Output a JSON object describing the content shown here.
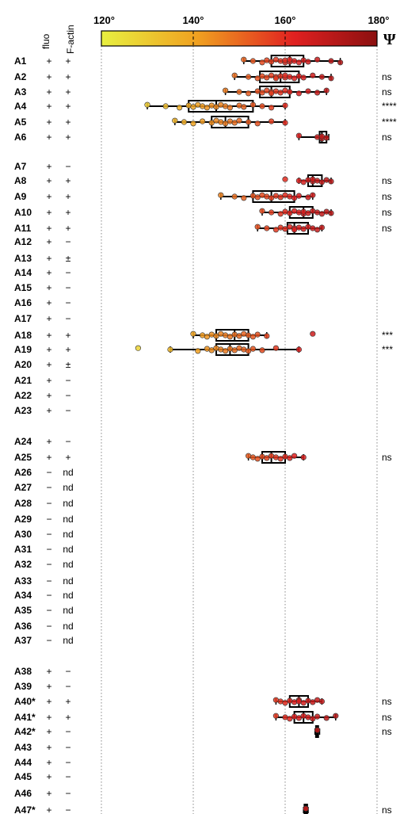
{
  "chart_data": {
    "type": "box",
    "title": "",
    "xlabel": "",
    "ylabel": "",
    "x_ticks": [
      "120°",
      "140°",
      "160°",
      "180°"
    ],
    "x_tick_values": [
      120,
      140,
      160,
      180
    ],
    "xlim": [
      120,
      180
    ],
    "colorbar": {
      "symbol": "Ψ",
      "range": [
        120,
        180
      ],
      "colors": [
        "#e8f040",
        "#f0a020",
        "#e02020",
        "#8b1010"
      ]
    },
    "grid": "dotted vertical",
    "column_headers": [
      "fluo",
      "F-actin"
    ],
    "rows": [
      {
        "name": "A1",
        "fluo": "+",
        "factin": "+",
        "sig": "",
        "stats": {
          "min": 151,
          "q1": 157,
          "median": 161,
          "q3": 164,
          "max": 172
        },
        "points": [
          151,
          153,
          155,
          156,
          157,
          158,
          159,
          160,
          160,
          161,
          161,
          162,
          163,
          164,
          165,
          167,
          170,
          172
        ]
      },
      {
        "name": "A2",
        "fluo": "+",
        "factin": "+",
        "sig": "ns",
        "stats": {
          "min": 149,
          "q1": 154.5,
          "median": 159,
          "q3": 163,
          "max": 170
        },
        "points": [
          149,
          152,
          154,
          155,
          156,
          157,
          158,
          158,
          159,
          160,
          160,
          161,
          162,
          163,
          164,
          166,
          168,
          170
        ]
      },
      {
        "name": "A3",
        "fluo": "+",
        "factin": "+",
        "sig": "ns",
        "stats": {
          "min": 147,
          "q1": 154.5,
          "median": 157,
          "q3": 161,
          "max": 169
        },
        "points": [
          147,
          150,
          152,
          154,
          155,
          156,
          157,
          157,
          158,
          159,
          160,
          161,
          163,
          165,
          167,
          169
        ]
      },
      {
        "name": "A4",
        "fluo": "+",
        "factin": "+",
        "sig": "****",
        "stats": {
          "min": 130,
          "q1": 139,
          "median": 145,
          "q3": 153,
          "max": 160
        },
        "points": [
          130,
          134,
          137,
          139,
          140,
          141,
          142,
          143,
          144,
          145,
          146,
          147,
          148,
          150,
          151,
          153,
          155,
          157,
          160
        ]
      },
      {
        "name": "A5",
        "fluo": "+",
        "factin": "+",
        "sig": "****",
        "stats": {
          "min": 136,
          "q1": 144,
          "median": 147,
          "q3": 152,
          "max": 160
        },
        "points": [
          136,
          138,
          140,
          142,
          144,
          145,
          146,
          147,
          148,
          149,
          150,
          152,
          154,
          157,
          160
        ]
      },
      {
        "name": "A6",
        "fluo": "+",
        "factin": "+",
        "sig": "ns",
        "stats": {
          "min": 163,
          "q1": 167.5,
          "median": 168,
          "q3": 169,
          "max": 169.5
        },
        "points": [
          163,
          167,
          168,
          168,
          169
        ]
      },
      {
        "name": "A7",
        "fluo": "+",
        "factin": "−",
        "sig": ""
      },
      {
        "name": "A8",
        "fluo": "+",
        "factin": "+",
        "sig": "ns",
        "stats": {
          "min": 163,
          "q1": 165,
          "median": 166,
          "q3": 168,
          "max": 170
        },
        "points": [
          160,
          163,
          164,
          165,
          166,
          166,
          167,
          168,
          169,
          170
        ]
      },
      {
        "name": "A9",
        "fluo": "+",
        "factin": "+",
        "sig": "ns",
        "stats": {
          "min": 146,
          "q1": 153,
          "median": 157,
          "q3": 162,
          "max": 166
        },
        "points": [
          146,
          149,
          151,
          153,
          154,
          155,
          156,
          157,
          158,
          159,
          160,
          161,
          162,
          163,
          165,
          166
        ]
      },
      {
        "name": "A10",
        "fluo": "+",
        "factin": "+",
        "sig": "ns",
        "stats": {
          "min": 155,
          "q1": 161,
          "median": 164,
          "q3": 166,
          "max": 170
        },
        "points": [
          155,
          157,
          159,
          160,
          161,
          162,
          163,
          164,
          164,
          165,
          166,
          167,
          168,
          169,
          170
        ]
      },
      {
        "name": "A11",
        "fluo": "+",
        "factin": "+",
        "sig": "ns",
        "stats": {
          "min": 154,
          "q1": 160.5,
          "median": 162,
          "q3": 165,
          "max": 168
        },
        "points": [
          154,
          156,
          158,
          159,
          160,
          161,
          162,
          162,
          163,
          164,
          165,
          166,
          167,
          168
        ]
      },
      {
        "name": "A12",
        "fluo": "+",
        "factin": "−",
        "sig": ""
      },
      {
        "name": "A13",
        "fluo": "+",
        "factin": "±",
        "sig": ""
      },
      {
        "name": "A14",
        "fluo": "+",
        "factin": "−",
        "sig": ""
      },
      {
        "name": "A15",
        "fluo": "+",
        "factin": "−",
        "sig": ""
      },
      {
        "name": "A16",
        "fluo": "+",
        "factin": "−",
        "sig": ""
      },
      {
        "name": "A17",
        "fluo": "+",
        "factin": "−",
        "sig": ""
      },
      {
        "name": "A18",
        "fluo": "+",
        "factin": "+",
        "sig": "***",
        "stats": {
          "min": 140,
          "q1": 145,
          "median": 149,
          "q3": 152,
          "max": 156
        },
        "points": [
          140,
          142,
          143,
          144,
          145,
          146,
          147,
          148,
          149,
          150,
          151,
          152,
          153,
          154,
          156,
          166
        ]
      },
      {
        "name": "A19",
        "fluo": "+",
        "factin": "+",
        "sig": "***",
        "stats": {
          "min": 135,
          "q1": 145,
          "median": 148,
          "q3": 152,
          "max": 163
        },
        "points": [
          128,
          135,
          141,
          143,
          144,
          145,
          146,
          147,
          148,
          149,
          150,
          151,
          152,
          153,
          155,
          158,
          163
        ]
      },
      {
        "name": "A20",
        "fluo": "+",
        "factin": "±",
        "sig": ""
      },
      {
        "name": "A21",
        "fluo": "+",
        "factin": "−",
        "sig": ""
      },
      {
        "name": "A22",
        "fluo": "+",
        "factin": "−",
        "sig": ""
      },
      {
        "name": "A23",
        "fluo": "+",
        "factin": "−",
        "sig": ""
      },
      {
        "name": "A24",
        "fluo": "+",
        "factin": "−",
        "sig": ""
      },
      {
        "name": "A25",
        "fluo": "+",
        "factin": "+",
        "sig": "ns",
        "stats": {
          "min": 152,
          "q1": 155,
          "median": 157,
          "q3": 160,
          "max": 164
        },
        "points": [
          152,
          153,
          154,
          155,
          156,
          157,
          158,
          159,
          160,
          161,
          162,
          164
        ]
      },
      {
        "name": "A26",
        "fluo": "−",
        "factin": "nd",
        "sig": ""
      },
      {
        "name": "A27",
        "fluo": "−",
        "factin": "nd",
        "sig": ""
      },
      {
        "name": "A28",
        "fluo": "−",
        "factin": "nd",
        "sig": ""
      },
      {
        "name": "A29",
        "fluo": "−",
        "factin": "nd",
        "sig": ""
      },
      {
        "name": "A30",
        "fluo": "−",
        "factin": "nd",
        "sig": ""
      },
      {
        "name": "A31",
        "fluo": "−",
        "factin": "nd",
        "sig": ""
      },
      {
        "name": "A32",
        "fluo": "−",
        "factin": "nd",
        "sig": ""
      },
      {
        "name": "A33",
        "fluo": "−",
        "factin": "nd",
        "sig": ""
      },
      {
        "name": "A34",
        "fluo": "−",
        "factin": "nd",
        "sig": ""
      },
      {
        "name": "A35",
        "fluo": "−",
        "factin": "nd",
        "sig": ""
      },
      {
        "name": "A36",
        "fluo": "−",
        "factin": "nd",
        "sig": ""
      },
      {
        "name": "A37",
        "fluo": "−",
        "factin": "nd",
        "sig": ""
      },
      {
        "name": "A38",
        "fluo": "+",
        "factin": "−",
        "sig": ""
      },
      {
        "name": "A39",
        "fluo": "+",
        "factin": "−",
        "sig": ""
      },
      {
        "name": "A40*",
        "fluo": "+",
        "factin": "+",
        "sig": "ns",
        "stats": {
          "min": 158,
          "q1": 161,
          "median": 163,
          "q3": 165,
          "max": 168
        },
        "points": [
          158,
          159,
          160,
          161,
          162,
          163,
          163,
          164,
          165,
          166,
          167,
          168
        ]
      },
      {
        "name": "A41*",
        "fluo": "+",
        "factin": "+",
        "sig": "ns",
        "stats": {
          "min": 158,
          "q1": 162,
          "median": 164,
          "q3": 166,
          "max": 171
        },
        "points": [
          158,
          160,
          161,
          162,
          163,
          164,
          165,
          166,
          167,
          169,
          171
        ]
      },
      {
        "name": "A42*",
        "fluo": "+",
        "factin": "−",
        "sig": "ns",
        "stats": {
          "min": 166.5,
          "q1": 166.7,
          "median": 167,
          "q3": 167.2,
          "max": 167.5
        },
        "points": [
          167
        ]
      },
      {
        "name": "A43",
        "fluo": "+",
        "factin": "−",
        "sig": ""
      },
      {
        "name": "A44",
        "fluo": "+",
        "factin": "−",
        "sig": ""
      },
      {
        "name": "A45",
        "fluo": "+",
        "factin": "−",
        "sig": ""
      },
      {
        "name": "A46",
        "fluo": "+",
        "factin": "−",
        "sig": ""
      },
      {
        "name": "A47*",
        "fluo": "+",
        "factin": "−",
        "sig": "ns",
        "stats": {
          "min": 164,
          "q1": 164.2,
          "median": 164.5,
          "q3": 164.8,
          "max": 165
        },
        "points": [
          164.5
        ]
      }
    ]
  }
}
